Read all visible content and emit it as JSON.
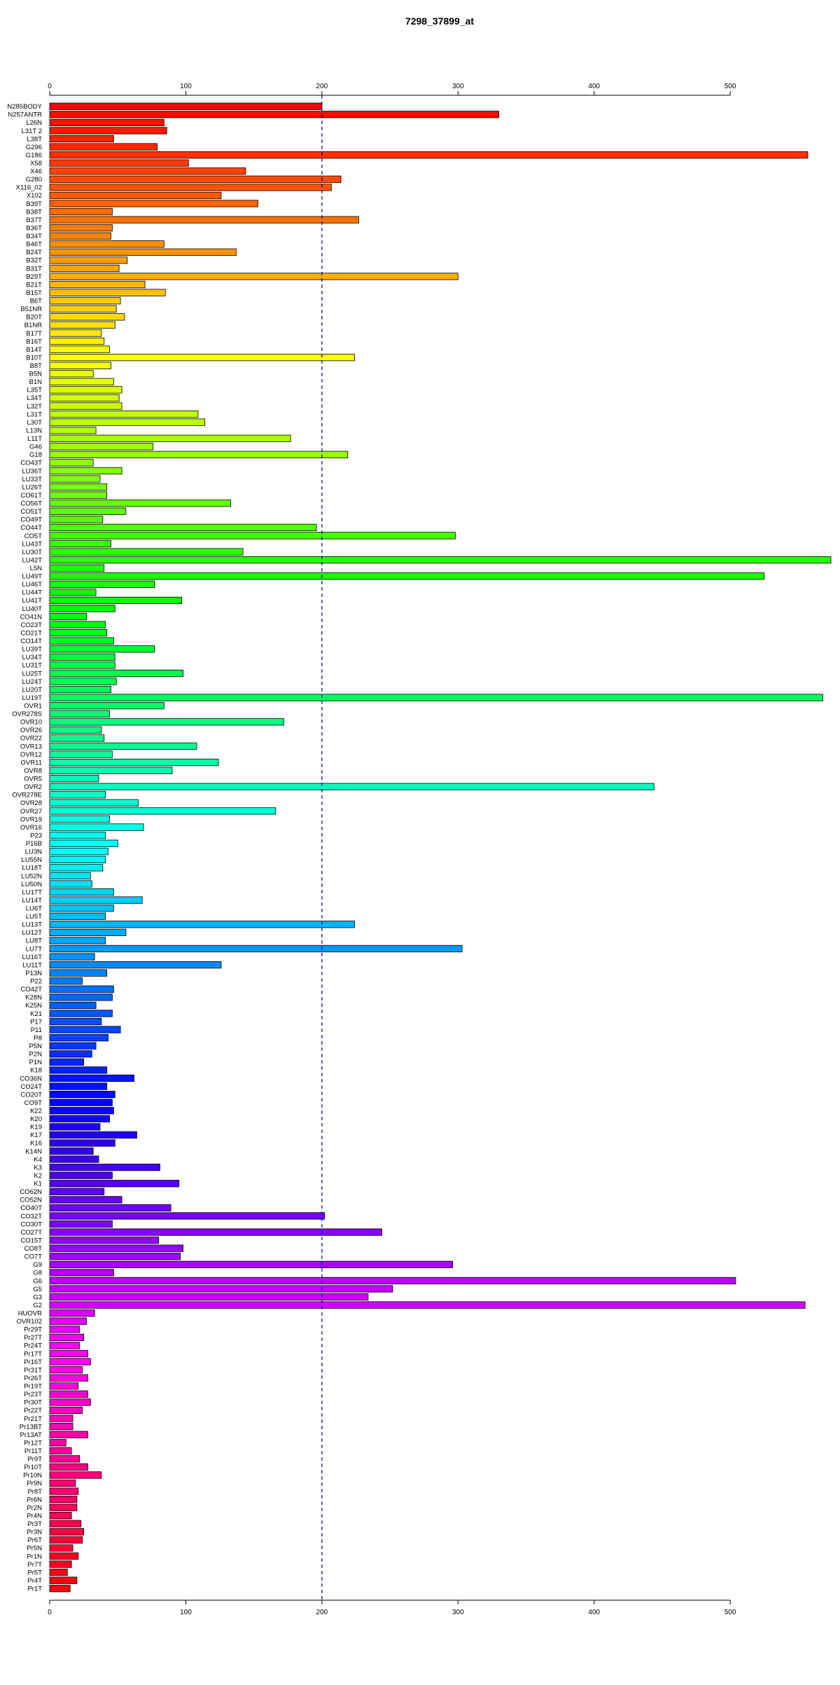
{
  "chart_data": {
    "type": "bar",
    "orientation": "horizontal",
    "title": "7298_37899_at",
    "xlim": [
      0,
      575
    ],
    "xticks": [
      0,
      100,
      200,
      300,
      400,
      500
    ],
    "reference_line": 200,
    "reference_line_color": "#00008b",
    "grid": false,
    "bar_fill": "rainbow (red to orange, top to bottom)",
    "categories": [
      "N285BODY",
      "N257ANTR",
      "L26N",
      "L31T 2",
      "L38T",
      "G296",
      "G186",
      "X58",
      "X46",
      "G280",
      "X116_02",
      "X102",
      "B39T",
      "B38T",
      "B37T",
      "B36T",
      "B34T",
      "B46T",
      "B24T",
      "B32T",
      "B31T",
      "B29T",
      "B21T",
      "B15T",
      "B6T",
      "B51NR",
      "B20T",
      "B1NR",
      "B17T",
      "B16T",
      "B14T",
      "B10T",
      "B8T",
      "B5N",
      "B1N",
      "L35T",
      "L34T",
      "L32T",
      "L31T",
      "L30T",
      "L13N",
      "L11T",
      "G46",
      "G18",
      "CO43T",
      "LU36T",
      "LU33T",
      "LU26T",
      "CO61T",
      "CO56T",
      "CO51T",
      "CO49T",
      "CO44T",
      "CO5T",
      "LU43T",
      "LU30T",
      "LU42T",
      "L5N",
      "LU49T",
      "LU46T",
      "LU44T",
      "LU41T",
      "LU40T",
      "CO41N",
      "CO23T",
      "CO21T",
      "CO14T",
      "LU39T",
      "LU34T",
      "LU31T",
      "LU25T",
      "LU24T",
      "LU20T",
      "LU19T",
      "OVR1",
      "OVR278S",
      "OVR10",
      "OVR26",
      "OVR22",
      "OVR13",
      "OVR12",
      "OVR11",
      "OVR8",
      "OVR5",
      "OVR2",
      "OVR278E",
      "OVR28",
      "OVR27",
      "OVR19",
      "OVR16",
      "P23",
      "P16B",
      "LU3N",
      "LU55N",
      "LU18T",
      "LU52N",
      "LU50N",
      "LU17T",
      "LU14T",
      "LU6T",
      "LU5T",
      "LU13T",
      "LU12T",
      "LU8T",
      "LU7T",
      "LU16T",
      "LU11T",
      "P13N",
      "P22",
      "CO42T",
      "K28N",
      "K25N",
      "K21",
      "P17",
      "P11",
      "P8",
      "P5N",
      "P2N",
      "P1N",
      "K18",
      "CO36N",
      "CO24T",
      "CO20T",
      "CO9T",
      "K22",
      "K20",
      "K19",
      "K17",
      "K16",
      "K14N",
      "K4",
      "K3",
      "K2",
      "K1",
      "CO62N",
      "CO52N",
      "CO40T",
      "CO32T",
      "CO30T",
      "CO27T",
      "CO15T",
      "CO8T",
      "CO7T",
      "G9",
      "G8",
      "G6",
      "G5",
      "G3",
      "G2",
      "HUOVR",
      "OVR102",
      "Pr29T",
      "Pr27T",
      "Pr24T",
      "Pr17T",
      "Pr16T",
      "Pr31T",
      "Pr26T",
      "Pr19T",
      "Pr23T",
      "Pr30T",
      "Pr22T",
      "Pr21T",
      "Pr13BT",
      "Pr13AT",
      "Pr12T",
      "Pr11T",
      "Pr9T",
      "Pr10T",
      "Pr10N",
      "Pr9N",
      "Pr8T",
      "Pr6N",
      "Pr2N",
      "Pr4N",
      "Pr3T",
      "Pr3N",
      "Pr6T",
      "Pr5N",
      "Pr1N",
      "Pr7T",
      "Pr5T",
      "Pr4T",
      "Pr1T"
    ],
    "values": [
      200,
      330,
      84,
      86,
      47,
      79,
      557,
      102,
      144,
      214,
      207,
      126,
      153,
      46,
      227,
      46,
      45,
      84,
      137,
      57,
      51,
      300,
      70,
      85,
      52,
      49,
      55,
      48,
      38,
      40,
      44,
      224,
      45,
      32,
      47,
      53,
      51,
      53,
      109,
      114,
      34,
      177,
      76,
      219,
      32,
      53,
      37,
      42,
      42,
      133,
      56,
      39,
      196,
      298,
      45,
      142,
      574,
      40,
      525,
      77,
      34,
      97,
      48,
      27,
      41,
      42,
      47,
      77,
      48,
      48,
      98,
      49,
      45,
      568,
      84,
      44,
      172,
      38,
      40,
      108,
      46,
      124,
      90,
      36,
      444,
      41,
      65,
      166,
      44,
      69,
      41,
      50,
      43,
      41,
      39,
      30,
      31,
      47,
      68,
      47,
      41,
      224,
      56,
      41,
      303,
      33,
      126,
      42,
      24,
      47,
      46,
      34,
      46,
      38,
      52,
      43,
      34,
      31,
      25,
      42,
      62,
      42,
      48,
      46,
      47,
      44,
      37,
      64,
      48,
      32,
      36,
      81,
      46,
      95,
      40,
      53,
      89,
      202,
      46,
      244,
      80,
      98,
      96,
      296,
      47,
      504,
      252,
      234,
      555,
      33,
      27,
      22,
      25,
      22,
      28,
      30,
      24,
      28,
      21,
      28,
      30,
      24,
      17,
      17,
      28,
      12,
      16,
      22,
      28,
      38,
      19,
      21,
      20,
      20,
      16,
      23,
      25,
      24,
      17,
      21,
      16,
      13,
      20,
      15
    ]
  }
}
